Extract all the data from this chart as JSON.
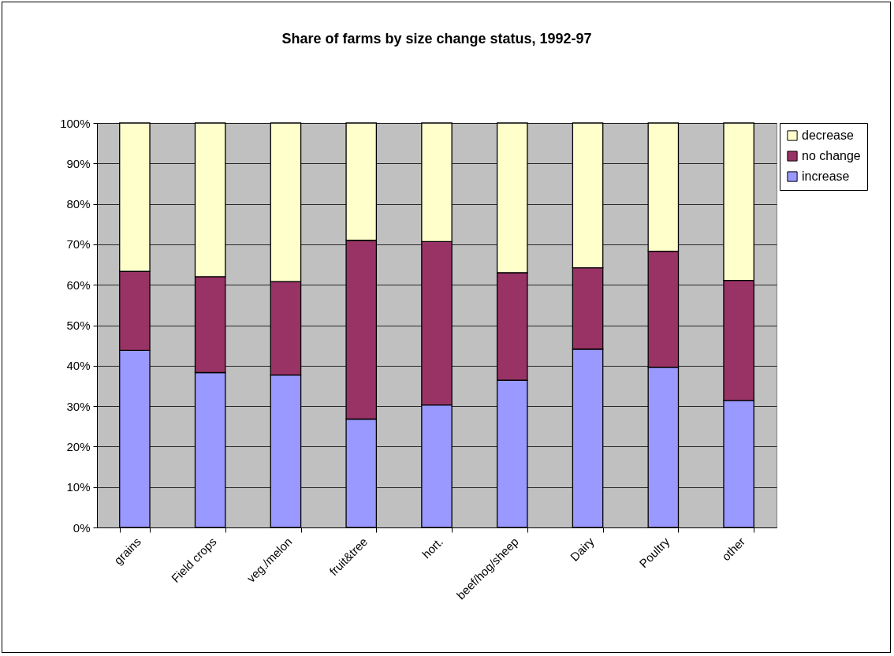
{
  "chart_data": {
    "type": "bar",
    "stacked": true,
    "title": "Share of farms by size change status, 1992-97",
    "categories": [
      "grains",
      "Field crops",
      "veg./melon",
      "fruit&tree",
      "hort.",
      "beef/hog/sheep",
      "Dairy",
      "Poultry",
      "other"
    ],
    "series": [
      {
        "name": "increase",
        "color": "#9999ff",
        "values": [
          43.8,
          38.3,
          37.7,
          26.8,
          30.3,
          36.4,
          44.1,
          39.6,
          31.4
        ]
      },
      {
        "name": "no change",
        "color": "#993366",
        "values": [
          19.5,
          23.7,
          23.1,
          44.2,
          40.4,
          26.6,
          20.1,
          28.7,
          29.7
        ]
      },
      {
        "name": "decrease",
        "color": "#ffffcc",
        "values": [
          36.7,
          38.0,
          39.2,
          29.0,
          29.3,
          37.0,
          35.8,
          31.7,
          38.9
        ]
      }
    ],
    "ylim": [
      0,
      100
    ],
    "yticks": [
      {
        "value": 0,
        "label": "0%"
      },
      {
        "value": 10,
        "label": "10%"
      },
      {
        "value": 20,
        "label": "20%"
      },
      {
        "value": 30,
        "label": "30%"
      },
      {
        "value": 40,
        "label": "40%"
      },
      {
        "value": 50,
        "label": "50%"
      },
      {
        "value": 60,
        "label": "60%"
      },
      {
        "value": 70,
        "label": "70%"
      },
      {
        "value": 80,
        "label": "80%"
      },
      {
        "value": 90,
        "label": "90%"
      },
      {
        "value": 100,
        "label": "100%"
      }
    ],
    "grid": "y",
    "legend": "right"
  }
}
